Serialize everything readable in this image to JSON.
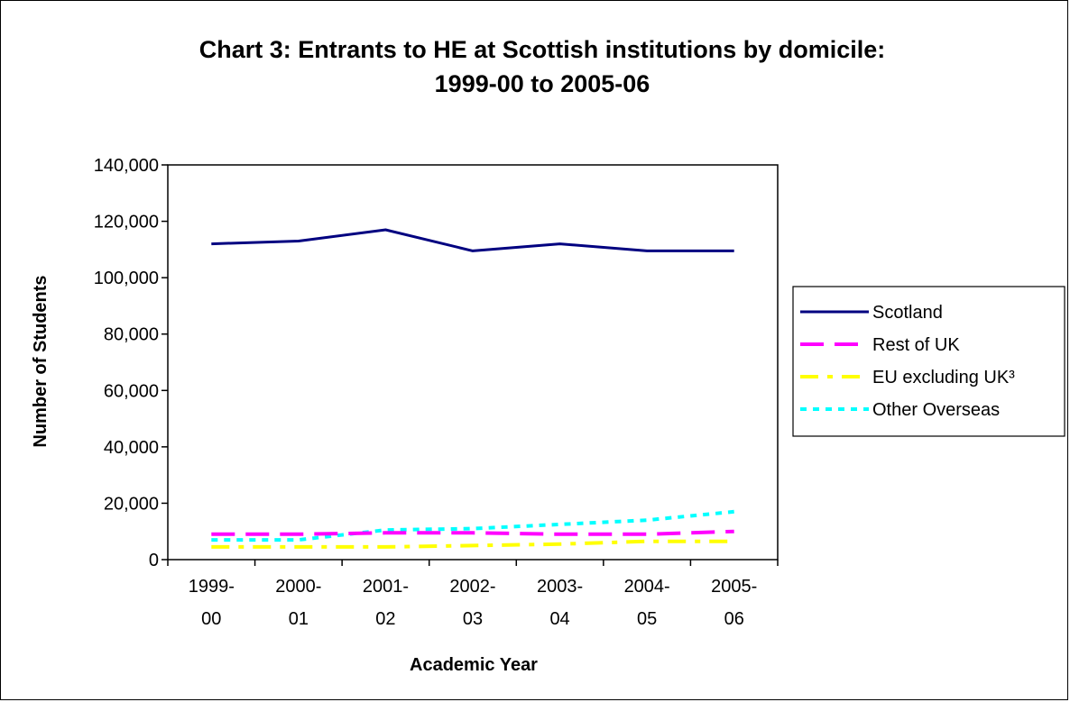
{
  "chart_data": {
    "type": "line",
    "title_line1": "Chart 3: Entrants to HE at Scottish institutions by domicile:",
    "title_line2": "1999-00 to 2005-06",
    "xlabel": "Academic Year",
    "ylabel": "Number of Students",
    "categories": [
      [
        "1999-",
        "00"
      ],
      [
        "2000-",
        "01"
      ],
      [
        "2001-",
        "02"
      ],
      [
        "2002-",
        "03"
      ],
      [
        "2003-",
        "04"
      ],
      [
        "2004-",
        "05"
      ],
      [
        "2005-",
        "06"
      ]
    ],
    "ylim": [
      0,
      140000
    ],
    "yticks": [
      "0",
      "20,000",
      "40,000",
      "60,000",
      "80,000",
      "100,000",
      "120,000",
      "140,000"
    ],
    "grid": false,
    "legend_position": "right",
    "series": [
      {
        "name": "Scotland",
        "color": "#000080",
        "style": "solid",
        "values": [
          112000,
          113000,
          117000,
          109500,
          112000,
          109500,
          109500
        ]
      },
      {
        "name": "Rest of UK",
        "color": "#FF00FF",
        "style": "dashed",
        "values": [
          9000,
          9000,
          9500,
          9500,
          9000,
          9000,
          10000
        ]
      },
      {
        "name": "EU excluding UK³",
        "color": "#FFFF00",
        "style": "dashdot",
        "values": [
          4500,
          4500,
          4500,
          5000,
          5500,
          6500,
          6500
        ]
      },
      {
        "name": "Other Overseas",
        "color": "#00FFFF",
        "style": "dotted",
        "values": [
          7000,
          7000,
          10500,
          11000,
          12500,
          14000,
          17000
        ]
      }
    ]
  }
}
